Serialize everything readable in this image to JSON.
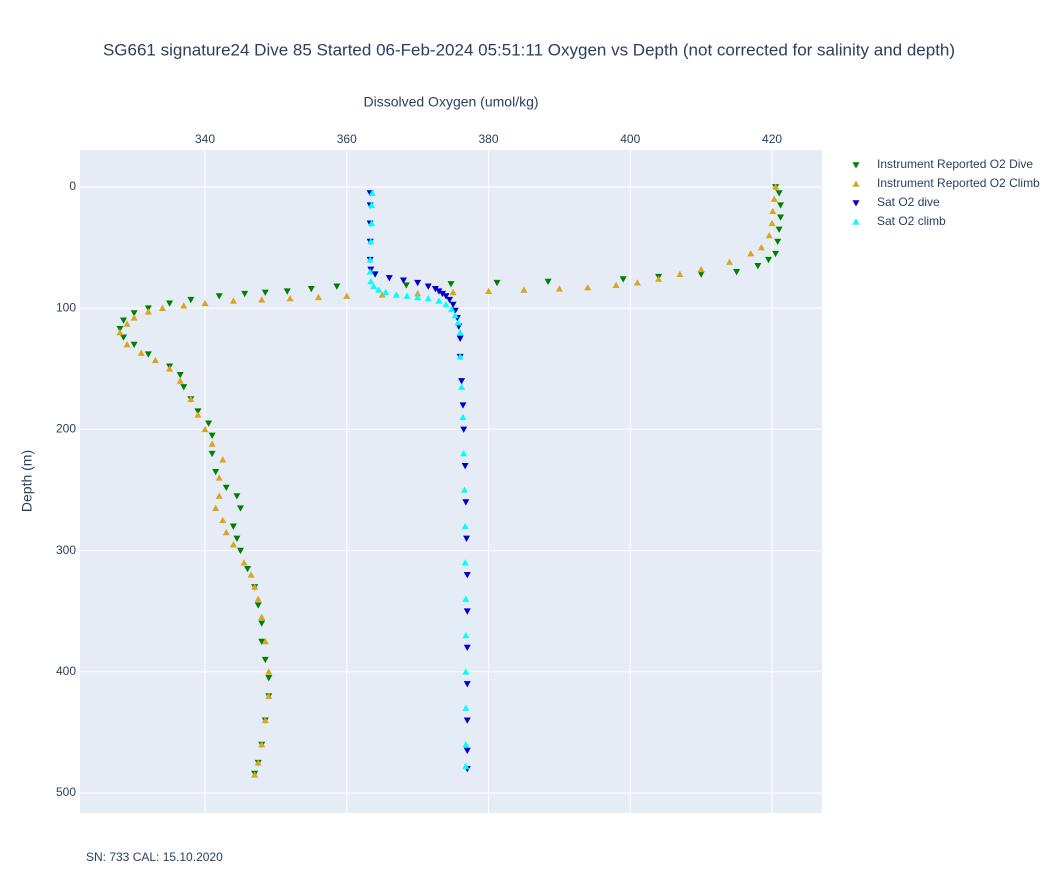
{
  "chart_data": {
    "type": "scatter",
    "title": "SG661 signature24 Dive 85 Started 06-Feb-2024 05:51:11  Oxygen vs Depth (not corrected for salinity and depth)",
    "x_label": "Dissolved Oxygen (umol/kg)",
    "y_label": "Depth (m)",
    "annotation": "SN: 733  CAL: 15.10.2020",
    "xlim": [
      322.36,
      427.05
    ],
    "ylim": [
      -30.5,
      516.5
    ],
    "y_reversed": true,
    "xticks": [
      340,
      360,
      380,
      400,
      420
    ],
    "yticks": [
      0,
      100,
      200,
      300,
      400,
      500
    ],
    "grid": true,
    "legend_position": "right",
    "series": [
      {
        "name": "Instrument Reported O2 Dive",
        "color": "#008000",
        "marker": "triangle-down",
        "x": [
          420.5,
          421,
          421.2,
          421.2,
          421,
          420.8,
          420.5,
          419.5,
          418,
          415,
          410,
          404,
          399,
          388.4,
          381.2,
          374.7,
          368.4,
          358.6,
          355,
          351.6,
          348.5,
          345.6,
          342,
          338,
          335,
          332,
          330,
          328.5,
          328,
          328.5,
          330,
          332,
          335,
          336.5,
          337,
          338,
          339,
          340.5,
          341,
          341,
          341.5,
          343,
          344.5,
          345,
          344,
          344.5,
          345,
          346,
          347,
          347.5,
          348,
          348,
          348.5,
          349,
          349,
          348.5,
          348,
          347.5,
          347
        ],
        "y": [
          0,
          5,
          15,
          25,
          35,
          45,
          55,
          60,
          65,
          70,
          72,
          74,
          76,
          78,
          79,
          80,
          81,
          82,
          84,
          86,
          87,
          88,
          90,
          93,
          96,
          100,
          104,
          110,
          117,
          124,
          130,
          138,
          148,
          155,
          165,
          175,
          185,
          195,
          205,
          220,
          235,
          248,
          255,
          265,
          280,
          290,
          300,
          315,
          330,
          345,
          360,
          375,
          390,
          405,
          420,
          440,
          460,
          475,
          484
        ]
      },
      {
        "name": "Instrument Reported O2 Climb",
        "color": "#daa520",
        "marker": "triangle-up",
        "x": [
          420.5,
          420.3,
          420.1,
          420,
          419.6,
          418.5,
          417,
          414,
          410,
          407,
          404,
          401,
          398,
          394,
          390,
          385,
          380,
          375,
          370,
          365,
          360,
          356,
          352,
          348,
          344,
          340,
          337,
          334,
          332,
          330,
          329,
          328,
          329,
          331,
          333,
          335,
          336.5,
          338,
          339,
          340,
          341,
          342.5,
          342,
          342,
          341.5,
          342.5,
          343,
          344,
          345.5,
          346.5,
          347,
          347.5,
          348,
          348.5,
          349,
          349,
          348.5,
          348,
          347.5,
          347
        ],
        "y": [
          0,
          10,
          20,
          30,
          40,
          50,
          55,
          62,
          68,
          72,
          76,
          79,
          81,
          83,
          84,
          85,
          86,
          87,
          88,
          89,
          90,
          91,
          92,
          93,
          94,
          96,
          98,
          100,
          103,
          108,
          113,
          120,
          130,
          137,
          143,
          150,
          160,
          175,
          188,
          200,
          212,
          225,
          240,
          255,
          265,
          275,
          285,
          295,
          310,
          320,
          330,
          340,
          355,
          375,
          400,
          420,
          440,
          460,
          475,
          485
        ]
      },
      {
        "name": "Sat O2 dive",
        "color": "#0000cd",
        "marker": "triangle-down",
        "x": [
          363.3,
          363.3,
          363.3,
          363.3,
          363.3,
          363.4,
          364,
          366,
          368,
          370,
          371.5,
          372.5,
          373,
          373.5,
          374,
          374.5,
          375,
          375.3,
          375.6,
          375.8,
          376,
          376,
          376.2,
          376.4,
          376.5,
          376.7,
          376.8,
          376.9,
          377,
          377,
          377,
          377,
          377,
          377,
          377
        ],
        "y": [
          5,
          15,
          30,
          45,
          60,
          68,
          72,
          75,
          77,
          79,
          82,
          84,
          86,
          88,
          90,
          93,
          97,
          102,
          108,
          115,
          125,
          140,
          160,
          180,
          200,
          230,
          260,
          290,
          320,
          350,
          380,
          410,
          440,
          465,
          480
        ]
      },
      {
        "name": "Sat O2 climb",
        "color": "#00ffff",
        "marker": "triangle-up",
        "x": [
          363.6,
          363.5,
          363.5,
          363.4,
          363.3,
          363.3,
          363.4,
          363.8,
          364.5,
          365.5,
          367,
          368.5,
          370,
          371.5,
          373,
          374,
          374.8,
          375.3,
          375.7,
          376,
          376,
          376.2,
          376.4,
          376.5,
          376.6,
          376.7,
          376.7,
          376.8,
          376.8,
          376.8,
          376.8,
          376.8,
          376.8
        ],
        "y": [
          5,
          15,
          30,
          45,
          60,
          70,
          78,
          82,
          85,
          87,
          89,
          90,
          91,
          92,
          94,
          97,
          101,
          106,
          112,
          120,
          140,
          165,
          190,
          220,
          250,
          280,
          310,
          340,
          370,
          400,
          430,
          460,
          478
        ]
      }
    ]
  }
}
